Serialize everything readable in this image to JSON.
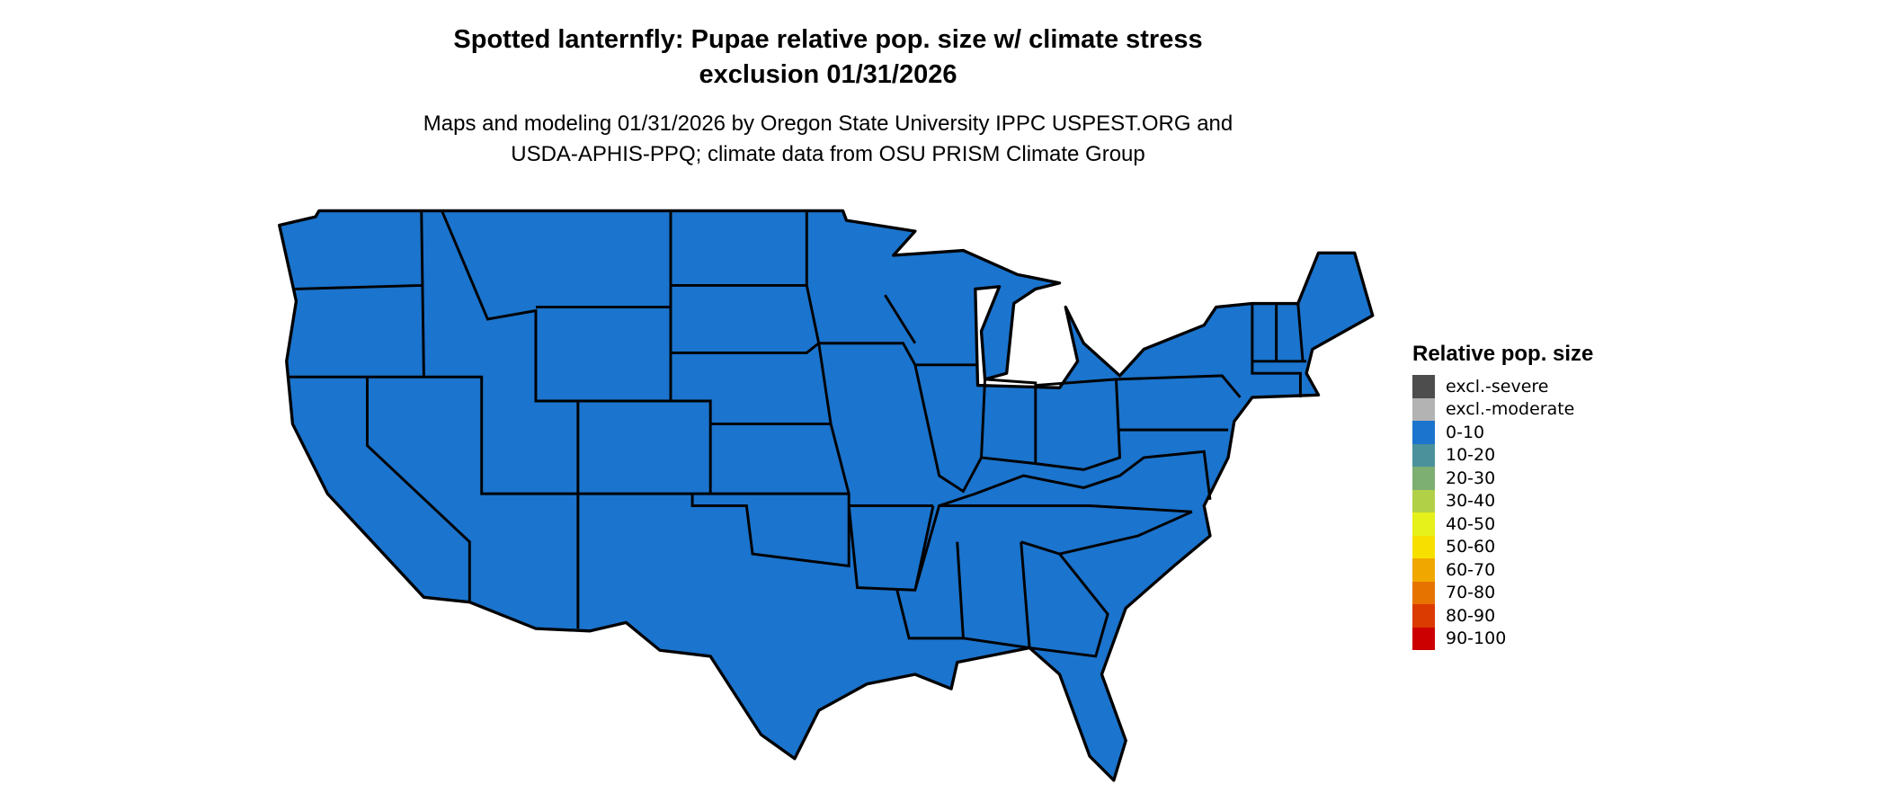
{
  "title": {
    "line1": "Spotted lanternfly: Pupae relative pop. size w/ climate stress",
    "line2": "exclusion 01/31/2026"
  },
  "subtitle": {
    "line1": "Maps and modeling 01/31/2026 by Oregon State University IPPC USPEST.ORG and",
    "line2": "USDA-APHIS-PPQ; climate data from OSU PRISM Climate Group"
  },
  "map": {
    "region": "Contiguous United States",
    "fill_color": "#1B74CD",
    "border_color": "#000000",
    "category_shown": "0-10"
  },
  "legend": {
    "title": "Relative pop. size",
    "items": [
      {
        "label": "excl.-severe",
        "color": "#4D4D4D"
      },
      {
        "label": "excl.-moderate",
        "color": "#B3B3B3"
      },
      {
        "label": "0-10",
        "color": "#1B74CD"
      },
      {
        "label": "10-20",
        "color": "#4A919B"
      },
      {
        "label": "20-30",
        "color": "#7DAE72"
      },
      {
        "label": "30-40",
        "color": "#B2D047"
      },
      {
        "label": "40-50",
        "color": "#E6F01A"
      },
      {
        "label": "50-60",
        "color": "#F7E000"
      },
      {
        "label": "60-70",
        "color": "#F0A800"
      },
      {
        "label": "70-80",
        "color": "#E67300"
      },
      {
        "label": "80-90",
        "color": "#DB3A00"
      },
      {
        "label": "90-100",
        "color": "#CC0000"
      }
    ]
  }
}
